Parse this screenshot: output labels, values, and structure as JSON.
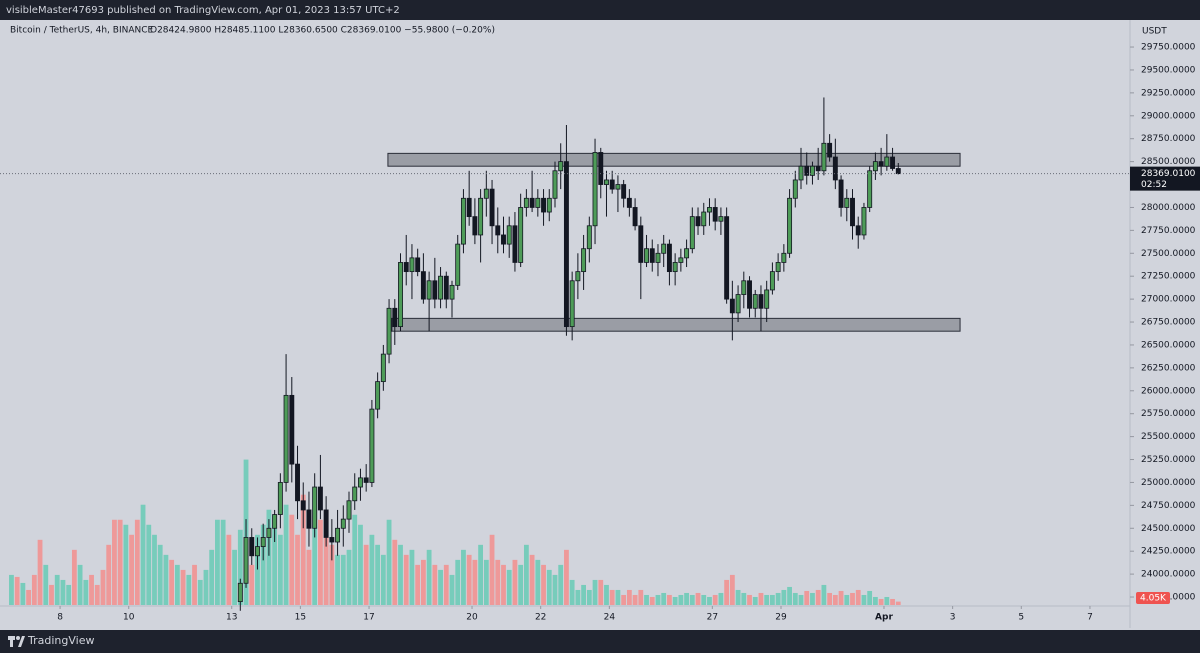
{
  "header": {
    "publisher": "visibleMaster47693 published on TradingView.com, Apr 01, 2023 13:57 UTC+2",
    "brand": "TradingView"
  },
  "chart_data": {
    "type": "candlestick",
    "title": "Bitcoin / TetherUS, 4h, BINANCE",
    "ohlc_text": "O28424.9800 H28485.1100 L28360.6500 C28369.0100 −55.9800 (−0.20%)",
    "currency": "USDT",
    "up_color": "#4e9c58",
    "down_color": "#131722",
    "xlim": [
      -1.5,
      196
    ],
    "xticks": [
      {
        "value": 9,
        "label": "8"
      },
      {
        "value": 21,
        "label": "10"
      },
      {
        "value": 39,
        "label": "13"
      },
      {
        "value": 51,
        "label": "15"
      },
      {
        "value": 63,
        "label": "17"
      },
      {
        "value": 81,
        "label": "20"
      },
      {
        "value": 93,
        "label": "22"
      },
      {
        "value": 105,
        "label": "24"
      },
      {
        "value": 123,
        "label": "27"
      },
      {
        "value": 135,
        "label": "29"
      },
      {
        "value": 153,
        "label": "Apr"
      },
      {
        "value": 165,
        "label": "3"
      },
      {
        "value": 177,
        "label": "5"
      },
      {
        "value": 189,
        "label": "7"
      }
    ],
    "ylim": [
      23663,
      30045
    ],
    "yticks": [
      {
        "value": 23750,
        "label": "23750.0000"
      },
      {
        "value": 24000,
        "label": "24000.0000"
      },
      {
        "value": 24250,
        "label": "24250.0000"
      },
      {
        "value": 24500,
        "label": "24500.0000"
      },
      {
        "value": 24750,
        "label": "24750.0000"
      },
      {
        "value": 25000,
        "label": "25000.0000"
      },
      {
        "value": 25250,
        "label": "25250.0000"
      },
      {
        "value": 25500,
        "label": "25500.0000"
      },
      {
        "value": 25750,
        "label": "25750.0000"
      },
      {
        "value": 26000,
        "label": "26000.0000"
      },
      {
        "value": 26250,
        "label": "26250.0000"
      },
      {
        "value": 26500,
        "label": "26500.0000"
      },
      {
        "value": 26750,
        "label": "26750.0000"
      },
      {
        "value": 27000,
        "label": "27000.0000"
      },
      {
        "value": 27250,
        "label": "27250.0000"
      },
      {
        "value": 27500,
        "label": "27500.0000"
      },
      {
        "value": 27750,
        "label": "27750.0000"
      },
      {
        "value": 28000,
        "label": "28000.0000"
      },
      {
        "value": 28250,
        "label": "28250.0000"
      },
      {
        "value": 28500,
        "label": "28500.0000"
      },
      {
        "value": 28750,
        "label": "28750.0000"
      },
      {
        "value": 29000,
        "label": "29000.0000"
      },
      {
        "value": 29250,
        "label": "29250.0000"
      },
      {
        "value": 29500,
        "label": "29500.0000"
      },
      {
        "value": 29750,
        "label": "29750.0000"
      }
    ],
    "y2lim": [
      0,
      700000
    ],
    "grid": false,
    "open": [
      null,
      null,
      null,
      null,
      null,
      null,
      null,
      null,
      null,
      null,
      null,
      null,
      null,
      null,
      null,
      null,
      null,
      null,
      null,
      null,
      null,
      null,
      null,
      null,
      null,
      null,
      null,
      null,
      null,
      null,
      null,
      null,
      null,
      null,
      null,
      null,
      null,
      null,
      null,
      null,
      23700,
      23900,
      24400,
      24200,
      24300,
      24400,
      24500,
      24650,
      25000,
      25950,
      25200,
      24800,
      24700,
      24500,
      24950,
      24700,
      24400,
      24350,
      24500,
      24600,
      24800,
      24950,
      25050,
      25000,
      25800,
      26100,
      26400,
      26900,
      26700,
      27400,
      27300,
      27450,
      27300,
      27000,
      27200,
      27000,
      27250,
      27000,
      27150,
      27600,
      28100,
      27900,
      27700,
      28100,
      28200,
      27800,
      27700,
      27600,
      27800,
      27400,
      28000,
      28100,
      28000,
      28100,
      27950,
      28100,
      28400,
      28500,
      26700,
      27200,
      27300,
      27550,
      27800,
      28600,
      28250,
      28300,
      28200,
      28250,
      28100,
      28000,
      27800,
      27400,
      27550,
      27400,
      27500,
      27600,
      27300,
      27400,
      27450,
      27550,
      27900,
      27800,
      27950,
      28000,
      27850,
      27900,
      27000,
      26850,
      27050,
      27200,
      26900,
      27050,
      26900,
      27100,
      27300,
      27400,
      27500,
      28100,
      28300,
      28450,
      28350,
      28450,
      28400,
      28700,
      28550,
      28300,
      28000,
      28100,
      27800,
      27700,
      28000,
      28400,
      28500,
      28450,
      28550,
      28424.98
    ],
    "high": [
      null,
      null,
      null,
      null,
      null,
      null,
      null,
      null,
      null,
      null,
      null,
      null,
      null,
      null,
      null,
      null,
      null,
      null,
      null,
      null,
      null,
      null,
      null,
      null,
      null,
      null,
      null,
      null,
      null,
      null,
      null,
      null,
      null,
      null,
      null,
      null,
      null,
      null,
      null,
      null,
      23950,
      24600,
      24500,
      24400,
      24550,
      24600,
      24700,
      25100,
      26400,
      26150,
      25400,
      25000,
      24900,
      25100,
      25300,
      24850,
      24600,
      24700,
      24750,
      24900,
      25100,
      25150,
      25200,
      25900,
      26200,
      26500,
      27000,
      27000,
      27500,
      27700,
      27600,
      27550,
      27500,
      27300,
      27450,
      27350,
      27300,
      27200,
      27700,
      28200,
      28400,
      28100,
      28200,
      28400,
      28300,
      28000,
      27900,
      27900,
      27950,
      28150,
      28200,
      28400,
      28200,
      28200,
      28200,
      28500,
      28700,
      28900,
      27300,
      27500,
      27700,
      27900,
      28750,
      28650,
      28400,
      28400,
      28350,
      28300,
      28200,
      28100,
      27900,
      27700,
      27650,
      27600,
      27700,
      27650,
      27500,
      27550,
      27650,
      28000,
      28000,
      28050,
      28100,
      28100,
      28000,
      28000,
      27200,
      27150,
      27300,
      27250,
      27100,
      27150,
      27200,
      27400,
      27500,
      27600,
      28200,
      28400,
      28650,
      28600,
      28500,
      28650,
      29200,
      28800,
      28750,
      28350,
      28200,
      28200,
      27900,
      28050,
      28450,
      28600,
      28650,
      28800,
      28650,
      28485.11
    ],
    "low": [
      null,
      null,
      null,
      null,
      null,
      null,
      null,
      null,
      null,
      null,
      null,
      null,
      null,
      null,
      null,
      null,
      null,
      null,
      null,
      null,
      null,
      null,
      null,
      null,
      null,
      null,
      null,
      null,
      null,
      null,
      null,
      null,
      null,
      null,
      null,
      null,
      null,
      null,
      null,
      null,
      23600,
      23850,
      24100,
      24050,
      24150,
      24200,
      24350,
      24500,
      24900,
      25000,
      24600,
      24500,
      24300,
      24400,
      24600,
      24300,
      24150,
      24200,
      24300,
      24450,
      24700,
      24800,
      24900,
      24950,
      25700,
      26000,
      26300,
      26500,
      26650,
      27150,
      27000,
      27250,
      26950,
      26650,
      26900,
      26900,
      26900,
      26800,
      27100,
      27500,
      27800,
      27600,
      27400,
      27900,
      27600,
      27500,
      27500,
      27450,
      27300,
      27350,
      27900,
      27950,
      27900,
      27800,
      27850,
      28000,
      28200,
      26600,
      26550,
      27000,
      27100,
      27400,
      27600,
      28100,
      27900,
      28150,
      27950,
      28000,
      27900,
      27750,
      27000,
      27350,
      27300,
      27250,
      27350,
      27150,
      27150,
      27300,
      27350,
      27500,
      27700,
      27700,
      27800,
      27750,
      27700,
      26950,
      26550,
      26750,
      26900,
      26800,
      26800,
      26650,
      26750,
      27050,
      27200,
      27300,
      27450,
      28000,
      28200,
      28250,
      28250,
      28300,
      28350,
      28500,
      28200,
      27900,
      27850,
      27650,
      27550,
      27650,
      27950,
      28300,
      28350,
      28400,
      28400,
      28360.65
    ],
    "close": [
      null,
      null,
      null,
      null,
      null,
      null,
      null,
      null,
      null,
      null,
      null,
      null,
      null,
      null,
      null,
      null,
      null,
      null,
      null,
      null,
      null,
      null,
      null,
      null,
      null,
      null,
      null,
      null,
      null,
      null,
      null,
      null,
      null,
      null,
      null,
      null,
      null,
      null,
      null,
      null,
      23900,
      24400,
      24200,
      24300,
      24400,
      24500,
      24650,
      25000,
      25950,
      25200,
      24800,
      24700,
      24500,
      24950,
      24700,
      24400,
      24350,
      24500,
      24600,
      24800,
      24950,
      25050,
      25000,
      25800,
      26100,
      26400,
      26900,
      26700,
      27400,
      27300,
      27450,
      27300,
      27000,
      27200,
      27000,
      27250,
      27000,
      27150,
      27600,
      28100,
      27900,
      27700,
      28100,
      28200,
      27800,
      27700,
      27600,
      27800,
      27400,
      28000,
      28100,
      28000,
      28100,
      27950,
      28100,
      28400,
      28500,
      26700,
      27200,
      27300,
      27550,
      27800,
      28600,
      28250,
      28300,
      28200,
      28250,
      28100,
      28000,
      27800,
      27400,
      27550,
      27400,
      27500,
      27600,
      27300,
      27400,
      27450,
      27550,
      27900,
      27800,
      27950,
      28000,
      27850,
      27900,
      27000,
      26850,
      27050,
      27200,
      26900,
      27050,
      26900,
      27100,
      27300,
      27400,
      27500,
      28100,
      28300,
      28450,
      28350,
      28450,
      28400,
      28700,
      28550,
      28300,
      28000,
      28100,
      27800,
      27700,
      28000,
      28400,
      28500,
      28450,
      28550,
      28425,
      28369.01
    ],
    "series": [
      {
        "name": "Volume",
        "axis": "y2",
        "last_value_label": "4.05K",
        "values": [
          36000,
          33600,
          26400,
          18000,
          36000,
          78000,
          48000,
          24000,
          36000,
          30000,
          24000,
          66000,
          48000,
          30000,
          36000,
          24000,
          42000,
          72000,
          102000,
          102000,
          96000,
          84000,
          102000,
          120000,
          96000,
          84000,
          72000,
          60000,
          54000,
          48000,
          42000,
          36000,
          48000,
          30000,
          42000,
          66000,
          102000,
          102000,
          84000,
          66000,
          90000,
          174000,
          48000,
          84000,
          96000,
          114000,
          108000,
          84000,
          120000,
          108000,
          84000,
          132000,
          66000,
          138000,
          102000,
          84000,
          72000,
          60000,
          60000,
          66000,
          108000,
          96000,
          72000,
          84000,
          72000,
          60000,
          102000,
          78000,
          72000,
          60000,
          66000,
          48000,
          54000,
          66000,
          48000,
          42000,
          48000,
          36000,
          54000,
          66000,
          60000,
          54000,
          72000,
          54000,
          84000,
          54000,
          48000,
          42000,
          54000,
          48000,
          72000,
          60000,
          54000,
          48000,
          42000,
          36000,
          48000,
          66000,
          30000,
          18000,
          24000,
          18000,
          30000,
          30000,
          24000,
          18000,
          18000,
          12000,
          18000,
          12000,
          18000,
          12000,
          9600,
          12000,
          14400,
          12000,
          9600,
          12000,
          14400,
          12000,
          14400,
          12000,
          9600,
          12000,
          14400,
          30000,
          36000,
          18000,
          14400,
          12000,
          9600,
          14400,
          12000,
          12000,
          14400,
          18000,
          21600,
          14400,
          12000,
          16800,
          14400,
          18000,
          24000,
          14400,
          12000,
          16800,
          12000,
          14400,
          18000,
          12000,
          16800,
          9600,
          7200,
          9600,
          7200,
          4050
        ],
        "colors": [
          "#7cb",
          "#e99",
          "#7cb",
          "#e99",
          "#e99",
          "#e99",
          "#7cb",
          "#e99",
          "#7cb",
          "#7cb",
          "#7cb",
          "#e99",
          "#7cb",
          "#7cb",
          "#e99",
          "#e99",
          "#e99",
          "#e99",
          "#e99",
          "#e99",
          "#7cb",
          "#e99",
          "#e99",
          "#7cb",
          "#7cb",
          "#7cb",
          "#7cb",
          "#7cb",
          "#e99",
          "#7cb",
          "#e99",
          "#7cb",
          "#e99",
          "#7cb",
          "#7cb",
          "#7cb",
          "#7cb",
          "#7cb",
          "#e99",
          "#7cb",
          "#7cb",
          "#7cb",
          "#e99",
          "#7cb",
          "#7cb",
          "#7cb",
          "#7cb",
          "#7cb",
          "#7cb",
          "#e99",
          "#e99",
          "#e99",
          "#e99",
          "#7cb",
          "#e99",
          "#e99",
          "#e99",
          "#7cb",
          "#7cb",
          "#7cb",
          "#7cb",
          "#7cb",
          "#e99",
          "#7cb",
          "#7cb",
          "#7cb",
          "#7cb",
          "#e99",
          "#7cb",
          "#e99",
          "#7cb",
          "#e99",
          "#e99",
          "#7cb",
          "#e99",
          "#7cb",
          "#e99",
          "#7cb",
          "#7cb",
          "#7cb",
          "#e99",
          "#e99",
          "#7cb",
          "#7cb",
          "#e99",
          "#e99",
          "#e99",
          "#7cb",
          "#e99",
          "#7cb",
          "#7cb",
          "#e99",
          "#7cb",
          "#e99",
          "#7cb",
          "#7cb",
          "#7cb",
          "#e99",
          "#7cb",
          "#7cb",
          "#7cb",
          "#7cb",
          "#7cb",
          "#e99",
          "#7cb",
          "#e99",
          "#7cb",
          "#e99",
          "#e99",
          "#e99",
          "#e99",
          "#7cb",
          "#e99",
          "#7cb",
          "#7cb",
          "#e99",
          "#7cb",
          "#7cb",
          "#7cb",
          "#7cb",
          "#e99",
          "#7cb",
          "#7cb",
          "#e99",
          "#7cb",
          "#e99",
          "#e99",
          "#7cb",
          "#7cb",
          "#e99",
          "#7cb",
          "#e99",
          "#7cb",
          "#7cb",
          "#7cb",
          "#7cb",
          "#7cb",
          "#7cb",
          "#7cb",
          "#e99",
          "#7cb",
          "#e99",
          "#7cb",
          "#e99",
          "#e99",
          "#e99",
          "#7cb",
          "#e99",
          "#e99",
          "#7cb",
          "#7cb",
          "#7cb",
          "#e99",
          "#7cb",
          "#e99",
          "#e99"
        ]
      }
    ],
    "zones": [
      {
        "high": 28590,
        "low": 28450,
        "start": 66.3,
        "end": 166.3
      },
      {
        "high": 26790,
        "low": 26650,
        "start": 67,
        "end": 166.3
      }
    ],
    "last_price": {
      "value": 28369.01,
      "label": "28369.0100"
    },
    "countdown": "02:52"
  }
}
